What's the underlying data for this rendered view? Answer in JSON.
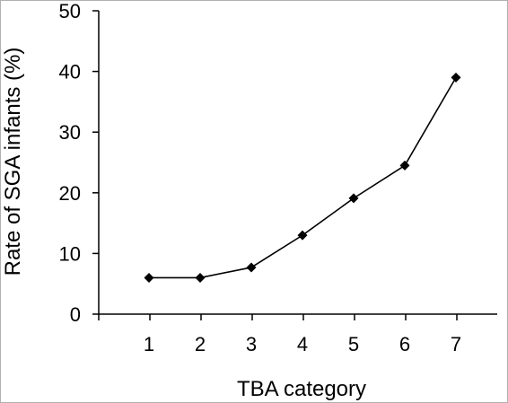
{
  "chart_data": {
    "type": "line",
    "title": "",
    "xlabel": "TBA category",
    "ylabel": "Rate of SGA infants (%)",
    "categories": [
      "1",
      "2",
      "3",
      "4",
      "5",
      "6",
      "7"
    ],
    "x_ticks": [
      "1",
      "2",
      "3",
      "4",
      "5",
      "6",
      "7"
    ],
    "y_ticks": [
      "0",
      "10",
      "20",
      "30",
      "40",
      "50"
    ],
    "ylim": [
      0,
      50
    ],
    "grid": false,
    "legend": "none",
    "series": [
      {
        "values": [
          6.0,
          6.0,
          7.7,
          13.0,
          19.1,
          24.5,
          39.0
        ],
        "color": "#000000",
        "marker": "diamond"
      }
    ]
  }
}
